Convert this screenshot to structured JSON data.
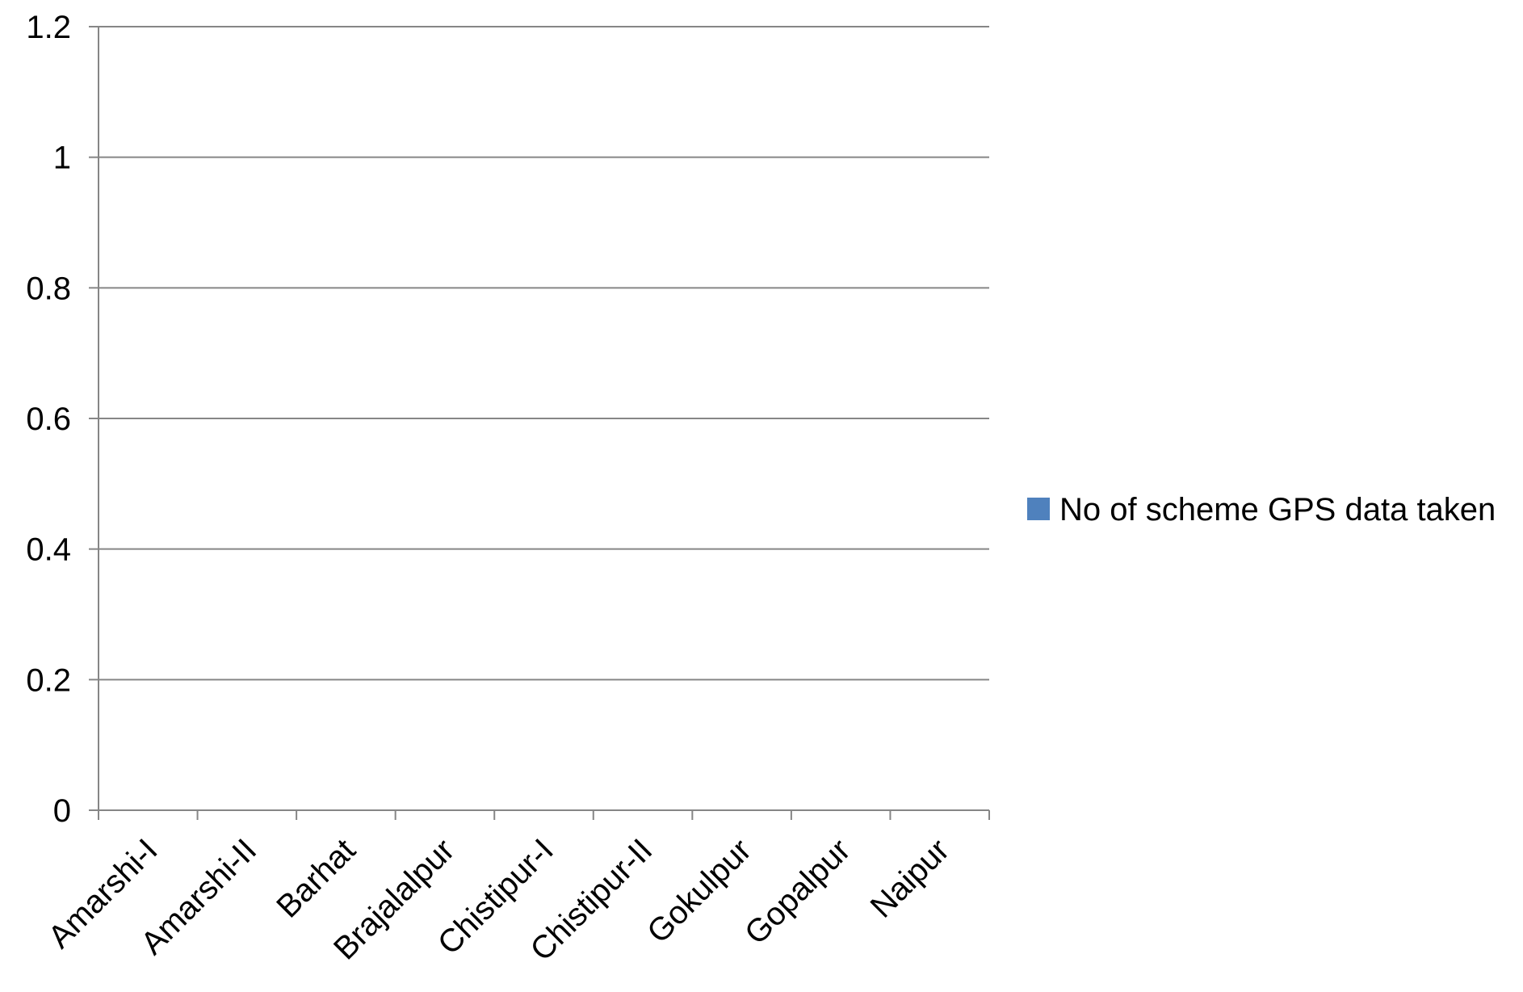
{
  "chart_data": {
    "type": "bar",
    "title": "",
    "xlabel": "",
    "ylabel": "",
    "categories": [
      "Amarshi-I",
      "Amarshi-II",
      "Barhat",
      "Brajalalpur",
      "Chistipur-I",
      "Chistipur-II",
      "Gokulpur",
      "Gopalpur",
      "Naipur"
    ],
    "series": [
      {
        "name": "No of scheme GPS data taken",
        "values": [
          0,
          0,
          0,
          0,
          0,
          0,
          0,
          0,
          0
        ],
        "color": "#4F81BD"
      }
    ],
    "ylim": [
      0,
      1.2
    ],
    "yticks": [
      "0",
      "0.2",
      "0.4",
      "0.6",
      "0.8",
      "1",
      "1.2"
    ],
    "grid": true,
    "legend_position": "right",
    "colors": {
      "axis": "#868686",
      "gridline": "#868686",
      "text": "#000000"
    }
  }
}
